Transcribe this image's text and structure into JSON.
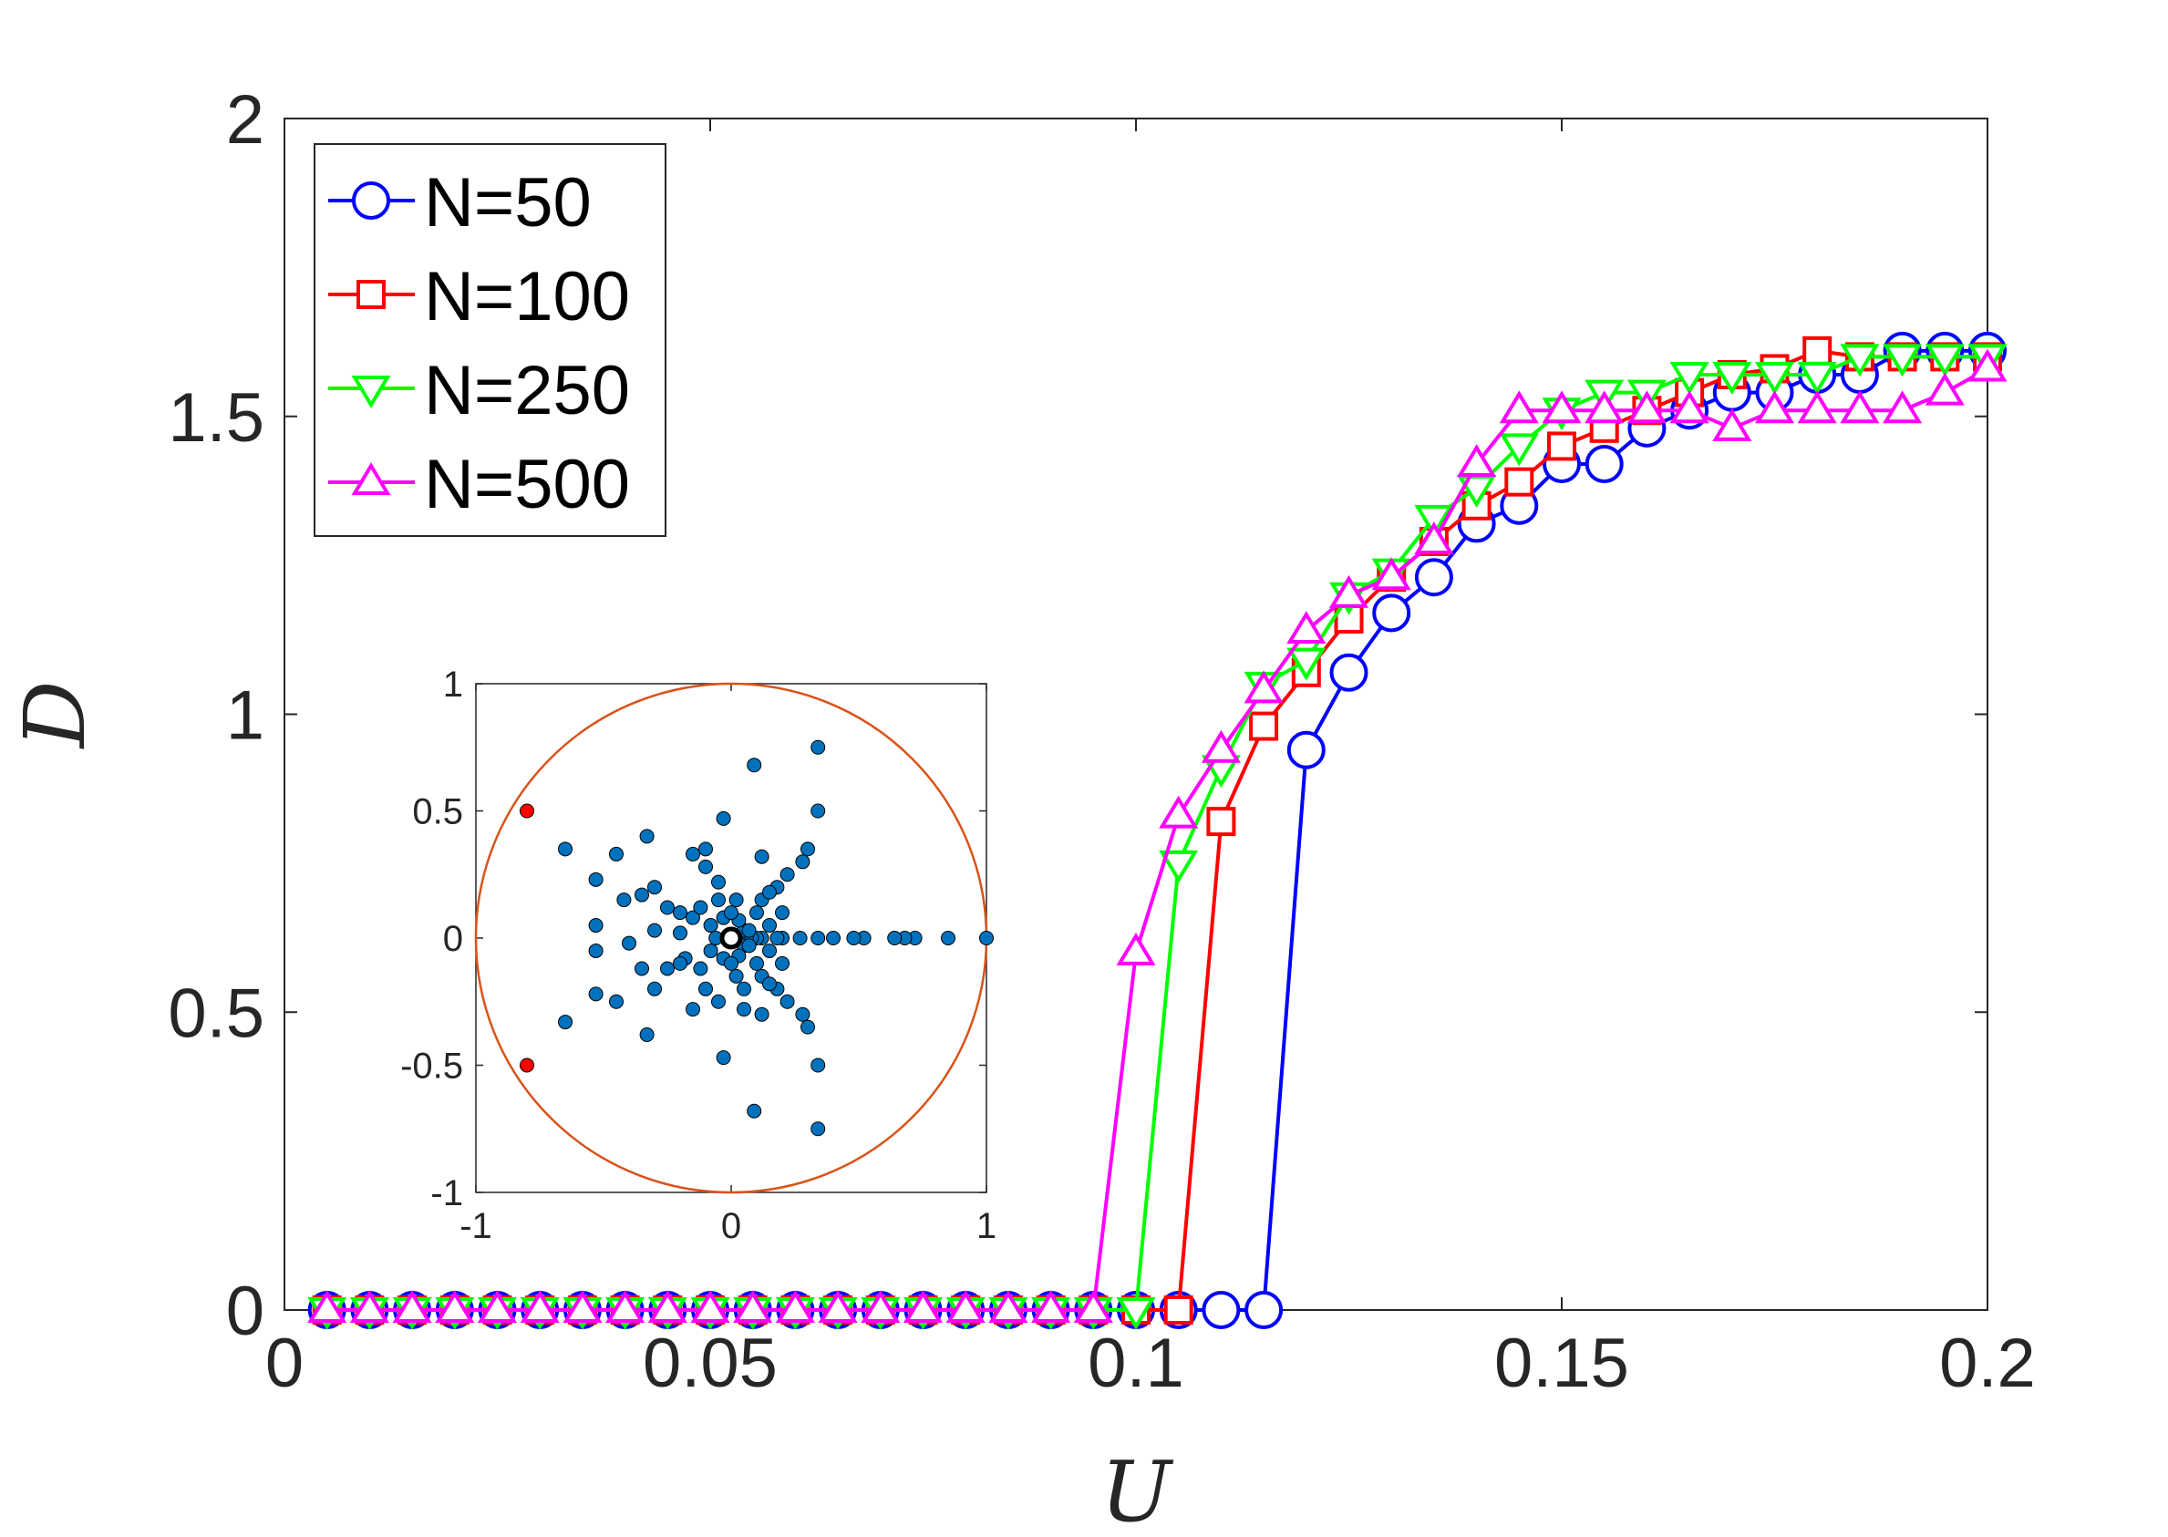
{
  "chart_data": [
    {
      "type": "line",
      "title": "",
      "xlabel": "U",
      "ylabel": "D",
      "xlim": [
        0,
        0.2
      ],
      "ylim": [
        0,
        2
      ],
      "xticks": [
        0,
        0.05,
        0.1,
        0.15,
        0.2
      ],
      "xtick_labels": [
        "0",
        "0.05",
        "0.1",
        "0.15",
        "0.2"
      ],
      "yticks": [
        0,
        0.5,
        1,
        1.5,
        2
      ],
      "ytick_labels": [
        "0",
        "0.5",
        "1",
        "1.5",
        "2"
      ],
      "grid": false,
      "legend_position": "top-left",
      "x": [
        0.005,
        0.01,
        0.015,
        0.02,
        0.025,
        0.03,
        0.035,
        0.04,
        0.045,
        0.05,
        0.055,
        0.06,
        0.065,
        0.07,
        0.075,
        0.08,
        0.085,
        0.09,
        0.095,
        0.1,
        0.105,
        0.11,
        0.115,
        0.12,
        0.125,
        0.13,
        0.135,
        0.14,
        0.145,
        0.15,
        0.155,
        0.16,
        0.165,
        0.17,
        0.175,
        0.18,
        0.185,
        0.19,
        0.195,
        0.2
      ],
      "series": [
        {
          "name": "N=50",
          "color": "#0000ff",
          "marker": "circle",
          "values": [
            0,
            0,
            0,
            0,
            0,
            0,
            0,
            0,
            0,
            0,
            0,
            0,
            0,
            0,
            0,
            0,
            0,
            0,
            0,
            0,
            0,
            0,
            0,
            0.94,
            1.07,
            1.17,
            1.23,
            1.32,
            1.35,
            1.42,
            1.42,
            1.48,
            1.51,
            1.54,
            1.54,
            1.57,
            1.57,
            1.61,
            1.61,
            1.61
          ]
        },
        {
          "name": "N=100",
          "color": "#ff0000",
          "marker": "square",
          "values": [
            0,
            0,
            0,
            0,
            0,
            0,
            0,
            0,
            0,
            0,
            0,
            0,
            0,
            0,
            0,
            0,
            0,
            0,
            0,
            0,
            0,
            0.82,
            0.98,
            1.07,
            1.16,
            1.23,
            1.29,
            1.35,
            1.39,
            1.45,
            1.48,
            1.51,
            1.54,
            1.57,
            1.58,
            1.61,
            1.6,
            1.6,
            1.6,
            1.6
          ]
        },
        {
          "name": "N=250",
          "color": "#00ff00",
          "marker": "triangle-down",
          "values": [
            0,
            0,
            0,
            0,
            0,
            0,
            0,
            0,
            0,
            0,
            0,
            0,
            0,
            0,
            0,
            0,
            0,
            0,
            0,
            0,
            0.75,
            0.91,
            1.05,
            1.09,
            1.2,
            1.24,
            1.33,
            1.38,
            1.45,
            1.51,
            1.54,
            1.54,
            1.57,
            1.57,
            1.57,
            1.57,
            1.6,
            1.6,
            1.6,
            1.6
          ]
        },
        {
          "name": "N=500",
          "color": "#ff00ff",
          "marker": "triangle-up",
          "values": [
            0,
            0,
            0,
            0,
            0,
            0,
            0,
            0,
            0,
            0,
            0,
            0,
            0,
            0,
            0,
            0,
            0,
            0,
            0,
            0.6,
            0.83,
            0.94,
            1.04,
            1.14,
            1.2,
            1.23,
            1.29,
            1.42,
            1.51,
            1.51,
            1.51,
            1.51,
            1.51,
            1.48,
            1.51,
            1.51,
            1.51,
            1.51,
            1.54,
            1.58
          ]
        }
      ]
    },
    {
      "type": "scatter",
      "title": "",
      "xlabel": "",
      "ylabel": "",
      "xlim": [
        -1,
        1
      ],
      "ylim": [
        -1,
        1
      ],
      "xticks": [
        -1,
        0,
        1
      ],
      "xtick_labels": [
        "-1",
        "0",
        "1"
      ],
      "yticks": [
        -1,
        -0.5,
        0,
        0.5,
        1
      ],
      "ytick_labels": [
        "-1",
        "-0.5",
        "0",
        "0.5",
        "1"
      ],
      "grid": false,
      "circle": {
        "center": [
          0,
          0
        ],
        "radius": 1,
        "color": "#d95319"
      },
      "points_color": "#0072bd",
      "points": [
        [
          1,
          0
        ],
        [
          0.85,
          0
        ],
        [
          0.72,
          0
        ],
        [
          0.68,
          0
        ],
        [
          0.64,
          0
        ],
        [
          0.52,
          0
        ],
        [
          0.48,
          0
        ],
        [
          0.4,
          0
        ],
        [
          0.34,
          0
        ],
        [
          0.27,
          0
        ],
        [
          0.2,
          0
        ],
        [
          0.18,
          0
        ],
        [
          0.12,
          0
        ],
        [
          0.1,
          0
        ],
        [
          0.08,
          0
        ],
        [
          0.06,
          0
        ],
        [
          0.05,
          0.03
        ],
        [
          0.05,
          -0.03
        ],
        [
          0.34,
          0.75
        ],
        [
          0.34,
          0.5
        ],
        [
          0.3,
          0.35
        ],
        [
          0.28,
          0.3
        ],
        [
          0.22,
          0.25
        ],
        [
          0.18,
          0.2
        ],
        [
          0.12,
          0.15
        ],
        [
          0.1,
          0.1
        ],
        [
          0.09,
          0.68
        ],
        [
          -0.03,
          0.47
        ],
        [
          -0.1,
          0.35
        ],
        [
          -0.15,
          0.33
        ],
        [
          -0.1,
          0.28
        ],
        [
          -0.05,
          0.22
        ],
        [
          -0.05,
          0.15
        ],
        [
          -0.33,
          0.4
        ],
        [
          -0.45,
          0.33
        ],
        [
          -0.3,
          0.2
        ],
        [
          -0.35,
          0.17
        ],
        [
          -0.42,
          0.15
        ],
        [
          -0.25,
          0.12
        ],
        [
          -0.15,
          0.08
        ],
        [
          -0.53,
          0.23
        ],
        [
          -0.65,
          0.35
        ],
        [
          -0.53,
          0.05
        ],
        [
          -0.53,
          -0.05
        ],
        [
          -0.4,
          -0.02
        ],
        [
          -0.3,
          0.03
        ],
        [
          -0.2,
          0.02
        ],
        [
          -0.53,
          -0.22
        ],
        [
          -0.45,
          -0.25
        ],
        [
          -0.25,
          -0.12
        ],
        [
          -0.18,
          -0.08
        ],
        [
          -0.65,
          -0.33
        ],
        [
          -0.33,
          -0.38
        ],
        [
          -0.3,
          -0.2
        ],
        [
          -0.35,
          -0.12
        ],
        [
          -0.15,
          -0.28
        ],
        [
          -0.1,
          -0.2
        ],
        [
          -0.05,
          -0.25
        ],
        [
          -0.03,
          -0.47
        ],
        [
          0.09,
          -0.68
        ],
        [
          0.34,
          -0.75
        ],
        [
          0.34,
          -0.5
        ],
        [
          0.3,
          -0.35
        ],
        [
          0.28,
          -0.3
        ],
        [
          0.22,
          -0.25
        ],
        [
          0.18,
          -0.2
        ],
        [
          0.12,
          -0.15
        ],
        [
          0.1,
          -0.1
        ],
        [
          0.05,
          -0.2
        ],
        [
          0.05,
          -0.28
        ],
        [
          0.12,
          0.32
        ],
        [
          0.12,
          -0.3
        ],
        [
          0.15,
          0.05
        ],
        [
          0.15,
          -0.05
        ],
        [
          0.02,
          0.15
        ],
        [
          0.02,
          -0.15
        ],
        [
          -0.08,
          0.05
        ],
        [
          -0.08,
          -0.05
        ],
        [
          -0.03,
          0.08
        ],
        [
          -0.03,
          -0.08
        ],
        [
          0.03,
          0.07
        ],
        [
          0.03,
          -0.07
        ],
        [
          0.07,
          0.03
        ],
        [
          0.07,
          -0.03
        ],
        [
          -0.06,
          0
        ],
        [
          0.0,
          0.1
        ],
        [
          0.0,
          -0.1
        ],
        [
          -0.12,
          0.12
        ],
        [
          -0.12,
          -0.12
        ],
        [
          0.15,
          0.18
        ],
        [
          0.15,
          -0.18
        ],
        [
          0.2,
          0.1
        ],
        [
          0.2,
          -0.1
        ],
        [
          -0.2,
          0.1
        ],
        [
          -0.2,
          -0.1
        ]
      ],
      "highlight_color": "#ff0000",
      "highlight_points": [
        [
          -0.8,
          0.5
        ],
        [
          -0.8,
          -0.5
        ]
      ]
    }
  ]
}
